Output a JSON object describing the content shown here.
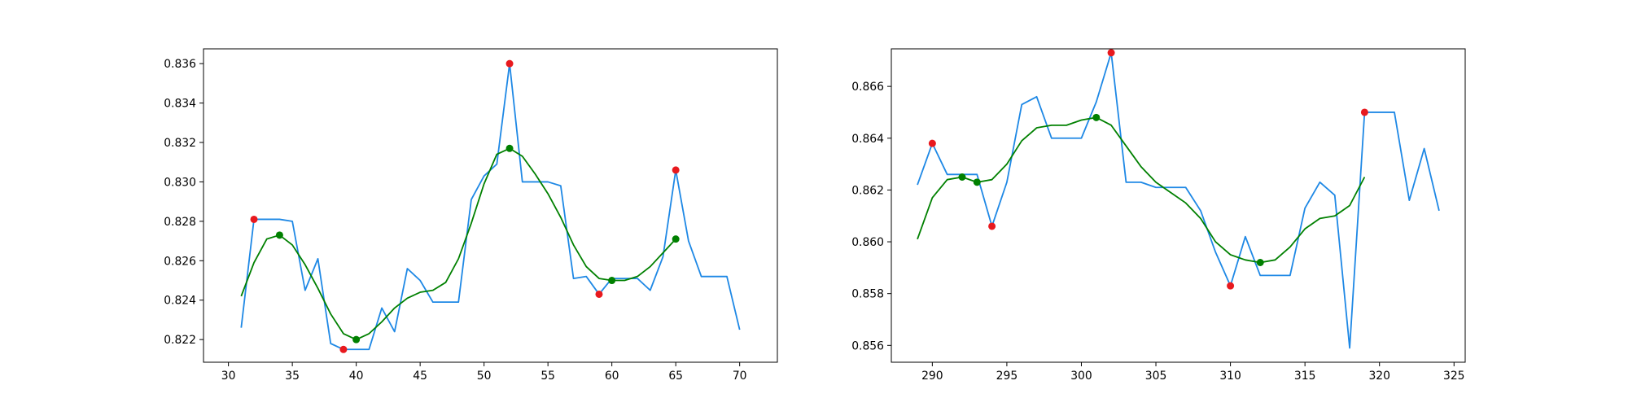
{
  "chart_data": [
    {
      "type": "line",
      "title": "",
      "xlabel": "",
      "ylabel": "",
      "xlim": [
        28.05,
        72.95
      ],
      "ylim": [
        0.82085,
        0.83675
      ],
      "xticks": [
        30,
        35,
        40,
        45,
        50,
        55,
        60,
        65,
        70
      ],
      "yticks": [
        0.822,
        0.824,
        0.826,
        0.828,
        0.83,
        0.832,
        0.834,
        0.836
      ],
      "y_decimals": 3,
      "grid": false,
      "colors": {
        "raw": "#1e88e5",
        "smooth": "#008000",
        "extrema_raw": "#e8191e",
        "extrema_smooth": "#008000"
      },
      "series": [
        {
          "x": [
            31,
            32,
            33,
            34,
            35,
            36,
            37,
            38,
            39,
            40,
            41,
            42,
            43,
            44,
            45,
            46,
            47,
            48,
            49,
            50,
            51,
            52,
            53,
            54,
            55,
            56,
            57,
            58,
            59,
            60,
            61,
            62,
            63,
            64,
            65,
            66,
            67,
            68,
            69,
            70
          ],
          "values": [
            0.8226,
            0.8281,
            0.8281,
            0.8281,
            0.828,
            0.8245,
            0.8261,
            0.8218,
            0.8215,
            0.8215,
            0.8215,
            0.8236,
            0.8224,
            0.8256,
            0.825,
            0.8239,
            0.8239,
            0.8239,
            0.8291,
            0.8303,
            0.8309,
            0.836,
            0.83,
            0.83,
            0.83,
            0.8298,
            0.8251,
            0.8252,
            0.8243,
            0.8251,
            0.8251,
            0.8251,
            0.8245,
            0.8262,
            0.8306,
            0.827,
            0.8252,
            0.8252,
            0.8252,
            0.8225
          ]
        },
        {
          "x": [
            31,
            32,
            33,
            34,
            35,
            36,
            37,
            38,
            39,
            40,
            41,
            42,
            43,
            44,
            45,
            46,
            47,
            48,
            49,
            50,
            51,
            52,
            53,
            54,
            55,
            56,
            57,
            58,
            59,
            60,
            61,
            62,
            63,
            64,
            65
          ],
          "values": [
            0.8242,
            0.8259,
            0.8271,
            0.8273,
            0.8268,
            0.8258,
            0.8246,
            0.8233,
            0.8223,
            0.822,
            0.8223,
            0.8229,
            0.8236,
            0.8241,
            0.8244,
            0.8245,
            0.8249,
            0.8261,
            0.8279,
            0.8299,
            0.8314,
            0.8317,
            0.8313,
            0.8304,
            0.8294,
            0.8282,
            0.8268,
            0.8257,
            0.8251,
            0.825,
            0.825,
            0.8252,
            0.8257,
            0.8264,
            0.8271
          ]
        }
      ],
      "markers": [
        {
          "x": [
            32,
            39,
            52,
            59,
            65
          ],
          "values": [
            0.8281,
            0.8215,
            0.836,
            0.8243,
            0.8306
          ]
        },
        {
          "x": [
            34,
            40,
            52,
            60,
            65
          ],
          "values": [
            0.8273,
            0.822,
            0.8317,
            0.825,
            0.8271
          ]
        }
      ]
    },
    {
      "type": "line",
      "title": "",
      "xlabel": "",
      "ylabel": "",
      "xlim": [
        287.25,
        325.75
      ],
      "ylim": [
        0.85535,
        0.86745
      ],
      "xticks": [
        290,
        295,
        300,
        305,
        310,
        315,
        320,
        325
      ],
      "yticks": [
        0.856,
        0.858,
        0.86,
        0.862,
        0.864,
        0.866
      ],
      "y_decimals": 3,
      "grid": false,
      "colors": {
        "raw": "#1e88e5",
        "smooth": "#008000",
        "extrema_raw": "#e8191e",
        "extrema_smooth": "#008000"
      },
      "series": [
        {
          "x": [
            289,
            290,
            291,
            292,
            293,
            294,
            295,
            296,
            297,
            298,
            299,
            300,
            301,
            302,
            303,
            304,
            305,
            306,
            307,
            308,
            309,
            310,
            311,
            312,
            313,
            314,
            315,
            316,
            317,
            318,
            319,
            320,
            321,
            322,
            323,
            324
          ],
          "values": [
            0.8622,
            0.8638,
            0.8626,
            0.8626,
            0.8626,
            0.8606,
            0.8623,
            0.8653,
            0.8656,
            0.864,
            0.864,
            0.864,
            0.8654,
            0.8673,
            0.8623,
            0.8623,
            0.8621,
            0.8621,
            0.8621,
            0.8612,
            0.8596,
            0.8583,
            0.8602,
            0.8587,
            0.8587,
            0.8587,
            0.8613,
            0.8623,
            0.8618,
            0.8559,
            0.865,
            0.865,
            0.865,
            0.8616,
            0.8636,
            0.8612
          ]
        },
        {
          "x": [
            289,
            290,
            291,
            292,
            293,
            294,
            295,
            296,
            297,
            298,
            299,
            300,
            301,
            302,
            303,
            304,
            305,
            306,
            307,
            308,
            309,
            310,
            311,
            312,
            313,
            314,
            315,
            316,
            317,
            318,
            319
          ],
          "values": [
            0.8601,
            0.8617,
            0.8624,
            0.8625,
            0.8623,
            0.8624,
            0.863,
            0.8639,
            0.8644,
            0.8645,
            0.8645,
            0.8647,
            0.8648,
            0.8645,
            0.8637,
            0.8629,
            0.8623,
            0.8619,
            0.8615,
            0.8609,
            0.86,
            0.8595,
            0.8593,
            0.8592,
            0.8593,
            0.8598,
            0.8605,
            0.8609,
            0.861,
            0.8614,
            0.8625
          ]
        }
      ],
      "markers": [
        {
          "x": [
            290,
            294,
            302,
            310,
            319
          ],
          "values": [
            0.8638,
            0.8606,
            0.8673,
            0.8583,
            0.865
          ]
        },
        {
          "x": [
            292,
            293,
            301,
            312
          ],
          "values": [
            0.8625,
            0.8623,
            0.8648,
            0.8592
          ]
        }
      ]
    }
  ]
}
